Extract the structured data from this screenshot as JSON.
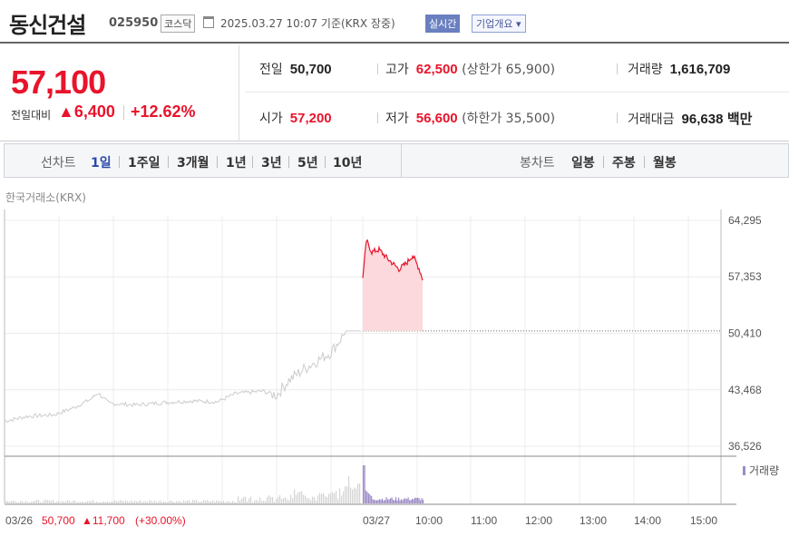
{
  "header": {
    "company": "동신건설",
    "code": "025950",
    "market": "코스닥",
    "datetime": "2025.03.27 10:07  기준(KRX 장중)",
    "live_label": "실시간",
    "info_button": "기업개요 ▾"
  },
  "price": {
    "current": "57,100",
    "change_label": "전일대비",
    "change": "▲6,400",
    "change_pct": "+12.62%"
  },
  "stats": {
    "prev_label": "전일",
    "prev": "50,700",
    "high_label": "고가",
    "high": "62,500",
    "upper_limit": "(상한가 65,900)",
    "volume_label": "거래량",
    "volume": "1,616,709",
    "open_label": "시가",
    "open": "57,200",
    "low_label": "저가",
    "low": "56,600",
    "lower_limit": "(하한가 35,500)",
    "amount_label": "거래대금",
    "amount": "96,638",
    "amount_unit": "백만"
  },
  "toolbar": {
    "line_label": "선차트",
    "line_periods": [
      "1일",
      "1주일",
      "3개월",
      "1년",
      "3년",
      "5년",
      "10년"
    ],
    "active_period": "1일",
    "candle_label": "봉차트",
    "candle_periods": [
      "일봉",
      "주봉",
      "월봉"
    ]
  },
  "exchange_label": "한국거래소(KRX)",
  "chart_data": {
    "type": "line",
    "y_ticks": [
      "64,295",
      "57,353",
      "50,410",
      "43,468",
      "36,526"
    ],
    "ylim": [
      36526,
      64295
    ],
    "x_ticks": [
      "03/27",
      "10:00",
      "11:00",
      "12:00",
      "13:00",
      "14:00",
      "15:00"
    ],
    "reference_price": 50700,
    "volume_legend": "거래량",
    "colors": {
      "prev_day_line": "#cccccc",
      "today_line": "#e8142b",
      "today_fill": "#fbd9dc",
      "volume_prev": "#d4d4d4",
      "volume_today": "#9c8cc8"
    },
    "footer": {
      "date": "03/26",
      "price": "50,700",
      "change": "▲11,700",
      "pct": "(+30.00%)"
    }
  }
}
